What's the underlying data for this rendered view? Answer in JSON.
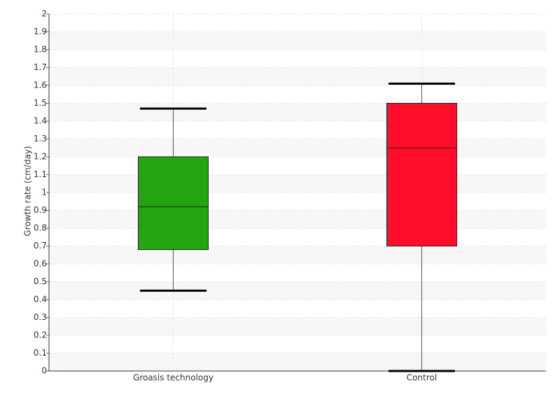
{
  "chart_data": {
    "type": "box",
    "y_label": "Growth rate (cm/day)",
    "categories": [
      "Groasis technology",
      "Control"
    ],
    "colors": [
      "#22a50e",
      "#ff0d2a"
    ],
    "boxes": [
      {
        "min": 0.45,
        "q1": 0.68,
        "median": 0.92,
        "q3": 1.2,
        "max": 1.47
      },
      {
        "min": 0,
        "q1": 0.7,
        "median": 1.25,
        "q3": 1.5,
        "max": 1.61
      }
    ],
    "ylim": [
      0,
      2
    ],
    "yticks": [
      0,
      0.1,
      0.2,
      0.3,
      0.4,
      0.5,
      0.6,
      0.7,
      0.8,
      0.9,
      1,
      1.1,
      1.2,
      1.3,
      1.4,
      1.5,
      1.6,
      1.7,
      1.8,
      1.9,
      2
    ],
    "grid": true
  }
}
